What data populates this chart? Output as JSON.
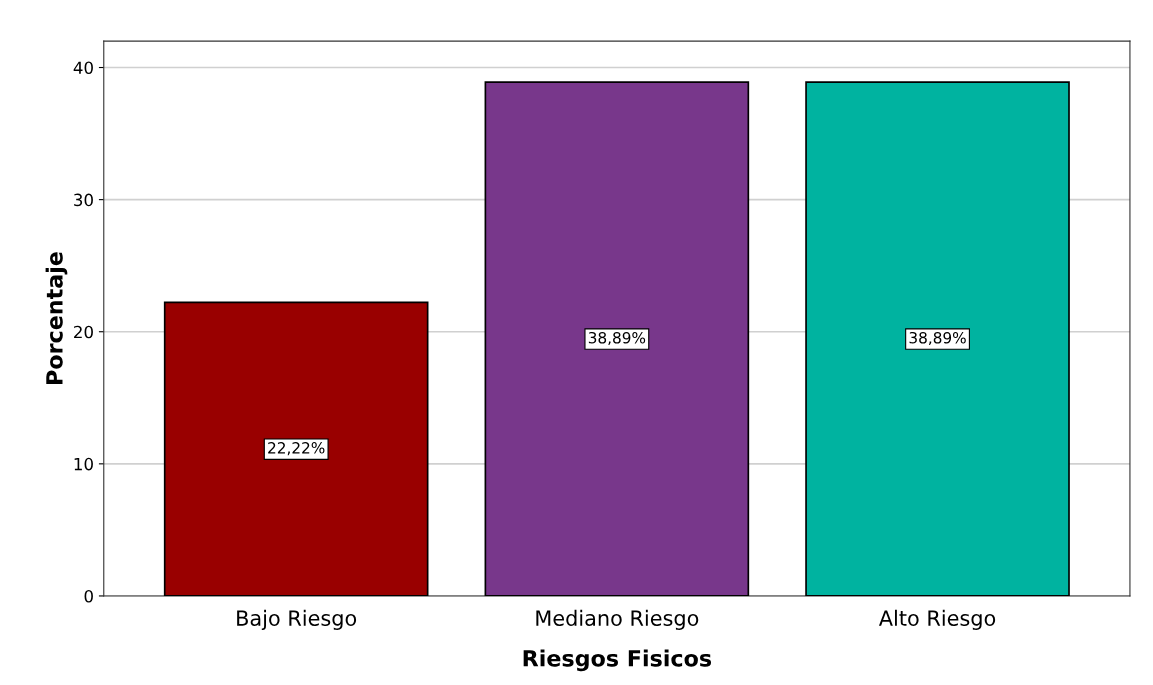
{
  "chart_data": {
    "type": "bar",
    "xlabel": "Riesgos Fisicos",
    "ylabel": "Porcentaje",
    "categories": [
      "Bajo Riesgo",
      "Mediano Riesgo",
      "Alto Riesgo"
    ],
    "values": [
      22.22,
      38.89,
      38.89
    ],
    "colors": [
      "#990000",
      "#78378b",
      "#00b3a0"
    ],
    "value_labels": [
      "22,22%",
      "38,89%",
      "38,89%"
    ],
    "ylim": [
      0,
      42
    ],
    "yticks": [
      0,
      10,
      20,
      30,
      40
    ],
    "grid": "y"
  }
}
